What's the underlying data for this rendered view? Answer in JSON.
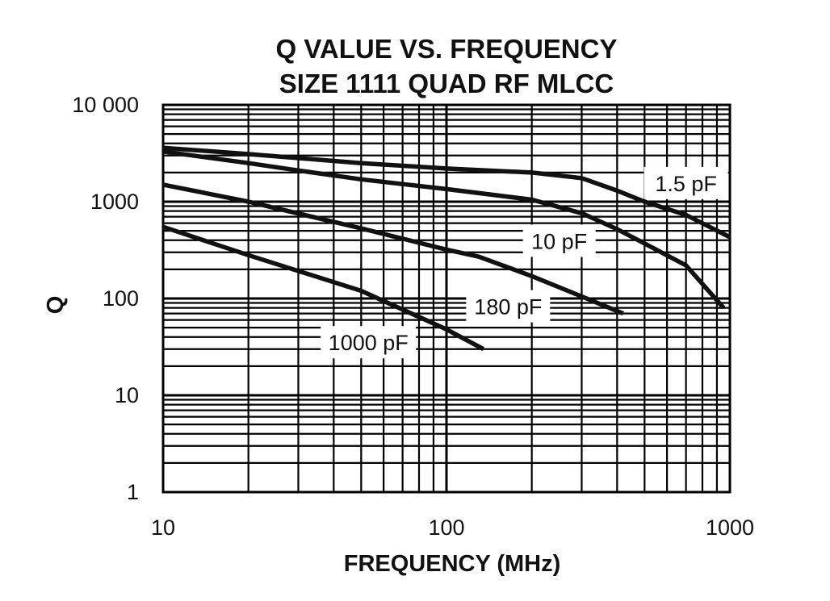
{
  "chart_data": {
    "type": "line",
    "title": [
      "Q VALUE VS. FREQUENCY",
      "SIZE 1111 QUAD RF MLCC"
    ],
    "xlabel": "FREQUENCY (MHz)",
    "ylabel": "Q",
    "xscale": "log",
    "yscale": "log",
    "xlim": [
      10,
      1000
    ],
    "ylim": [
      1,
      10000
    ],
    "xticks": [
      10,
      100,
      1000
    ],
    "xtick_labels": [
      "10",
      "100",
      "1000"
    ],
    "yticks": [
      1,
      10,
      100,
      1000,
      10000
    ],
    "ytick_labels": [
      "1",
      "10",
      "100",
      "1000",
      "10 000"
    ],
    "grid": true,
    "series": [
      {
        "name": "1.5 pF",
        "points": [
          [
            10,
            3600
          ],
          [
            20,
            3100
          ],
          [
            50,
            2500
          ],
          [
            100,
            2200
          ],
          [
            200,
            2000
          ],
          [
            300,
            1750
          ],
          [
            400,
            1300
          ],
          [
            500,
            1000
          ],
          [
            700,
            730
          ],
          [
            1000,
            430
          ]
        ]
      },
      {
        "name": "10 pF",
        "points": [
          [
            10,
            3300
          ],
          [
            20,
            2500
          ],
          [
            30,
            2100
          ],
          [
            50,
            1700
          ],
          [
            100,
            1350
          ],
          [
            200,
            1050
          ],
          [
            300,
            760
          ],
          [
            400,
            520
          ],
          [
            500,
            370
          ],
          [
            700,
            220
          ],
          [
            950,
            80
          ]
        ]
      },
      {
        "name": "180 pF",
        "points": [
          [
            10,
            1500
          ],
          [
            20,
            1000
          ],
          [
            50,
            530
          ],
          [
            100,
            320
          ],
          [
            130,
            270
          ],
          [
            200,
            170
          ],
          [
            300,
            105
          ],
          [
            420,
            70
          ]
        ]
      },
      {
        "name": "1000 pF",
        "points": [
          [
            10,
            550
          ],
          [
            20,
            280
          ],
          [
            50,
            120
          ],
          [
            100,
            48
          ],
          [
            135,
            30
          ]
        ]
      }
    ]
  }
}
